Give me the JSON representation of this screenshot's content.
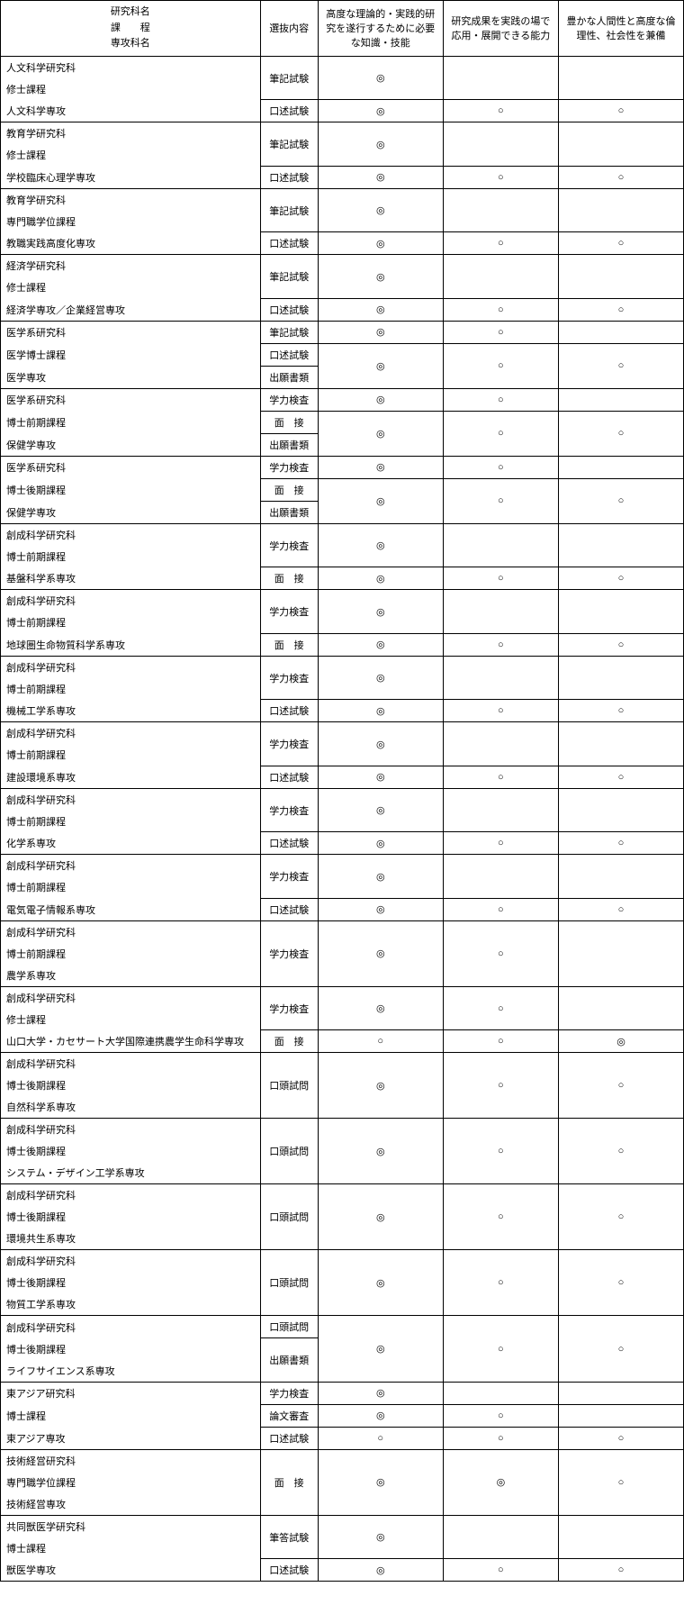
{
  "symbols": {
    "dcircle": "◎",
    "circle": "○"
  },
  "colors": {
    "border": "#000000",
    "text": "#000000",
    "bg": "#ffffff"
  },
  "typography": {
    "font_family": "MS Gothic",
    "font_size_pt": 8
  },
  "header": {
    "col1_lines": [
      "研究科名",
      "課　　程",
      "専攻科名"
    ],
    "col2": "選抜内容",
    "col3": "高度な理論的・実践的研究を遂行するために必要な知識・技能",
    "col4": "研究成果を実践の場で応用・展開できる能力",
    "col5": "豊かな人間性と高度な倫理性、社会性を兼備"
  },
  "groups": [
    {
      "program": [
        "人文科学研究科",
        "修士課程",
        "人文科学専攻"
      ],
      "rows": [
        {
          "sel": "筆記試験",
          "c3": "◎",
          "c4": "",
          "c5": "",
          "merge345": false,
          "span_rows": 2,
          "bigcell": true
        },
        {
          "sel": "口述試験",
          "c3": "◎",
          "c4": "○",
          "c5": "○"
        }
      ]
    },
    {
      "program": [
        "教育学研究科",
        "修士課程",
        "学校臨床心理学専攻"
      ],
      "rows": [
        {
          "sel": "筆記試験",
          "c3": "◎",
          "c4": "",
          "c5": "",
          "span_rows": 2,
          "bigcell": true
        },
        {
          "sel": "口述試験",
          "c3": "◎",
          "c4": "○",
          "c5": "○"
        }
      ]
    },
    {
      "program": [
        "教育学研究科",
        "専門職学位課程",
        "教職実践高度化専攻"
      ],
      "rows": [
        {
          "sel": "筆記試験",
          "c3": "◎",
          "c4": "",
          "c5": "",
          "span_rows": 2,
          "bigcell": true
        },
        {
          "sel": "口述試験",
          "c3": "◎",
          "c4": "○",
          "c5": "○"
        }
      ]
    },
    {
      "program": [
        "経済学研究科",
        "修士課程",
        "経済学専攻／企業経営専攻"
      ],
      "rows": [
        {
          "sel": "筆記試験",
          "c3": "◎",
          "c4": "",
          "c5": "",
          "span_rows": 2,
          "bigcell": true
        },
        {
          "sel": "口述試験",
          "c3": "◎",
          "c4": "○",
          "c5": "○"
        }
      ]
    },
    {
      "program": [
        "医学系研究科",
        "医学博士課程",
        "医学専攻"
      ],
      "rows": [
        {
          "sel": "筆記試験",
          "c3": "◎",
          "c4": "○",
          "c5": ""
        },
        {
          "sel": "口述試験",
          "c3": "◎",
          "c4": "○",
          "c5": "○",
          "merge_below_345": true
        },
        {
          "sel": "出願書類",
          "skip345": true
        }
      ]
    },
    {
      "program": [
        "医学系研究科",
        "博士前期課程",
        "保健学専攻"
      ],
      "rows": [
        {
          "sel": "学力検査",
          "c3": "◎",
          "c4": "○",
          "c5": ""
        },
        {
          "sel": "面　接",
          "c3": "◎",
          "c4": "○",
          "c5": "○",
          "merge_below_345": true
        },
        {
          "sel": "出願書類",
          "skip345": true
        }
      ]
    },
    {
      "program": [
        "医学系研究科",
        "博士後期課程",
        "保健学専攻"
      ],
      "rows": [
        {
          "sel": "学力検査",
          "c3": "◎",
          "c4": "○",
          "c5": ""
        },
        {
          "sel": "面　接",
          "c3": "◎",
          "c4": "○",
          "c5": "○",
          "merge_below_345": true
        },
        {
          "sel": "出願書類",
          "skip345": true
        }
      ]
    },
    {
      "program": [
        "創成科学研究科",
        "博士前期課程",
        "基盤科学系専攻"
      ],
      "rows": [
        {
          "sel": "学力検査",
          "c3": "◎",
          "c4": "",
          "c5": "",
          "span_rows": 2,
          "bigcell": true
        },
        {
          "sel": "面　接",
          "c3": "◎",
          "c4": "○",
          "c5": "○"
        }
      ]
    },
    {
      "program": [
        "創成科学研究科",
        "博士前期課程",
        "地球圏生命物質科学系専攻"
      ],
      "rows": [
        {
          "sel": "学力検査",
          "c3": "◎",
          "c4": "",
          "c5": "",
          "span_rows": 2,
          "bigcell": true
        },
        {
          "sel": "面　接",
          "c3": "◎",
          "c4": "○",
          "c5": "○"
        }
      ]
    },
    {
      "program": [
        "創成科学研究科",
        "博士前期課程",
        "機械工学系専攻"
      ],
      "rows": [
        {
          "sel": "学力検査",
          "c3": "◎",
          "c4": "",
          "c5": "",
          "span_rows": 2,
          "bigcell": true
        },
        {
          "sel": "口述試験",
          "c3": "◎",
          "c4": "○",
          "c5": "○"
        }
      ]
    },
    {
      "program": [
        "創成科学研究科",
        "博士前期課程",
        "建設環境系専攻"
      ],
      "rows": [
        {
          "sel": "学力検査",
          "c3": "◎",
          "c4": "",
          "c5": "",
          "span_rows": 2,
          "bigcell": true
        },
        {
          "sel": "口述試験",
          "c3": "◎",
          "c4": "○",
          "c5": "○"
        }
      ]
    },
    {
      "program": [
        "創成科学研究科",
        "博士前期課程",
        "化学系専攻"
      ],
      "rows": [
        {
          "sel": "学力検査",
          "c3": "◎",
          "c4": "",
          "c5": "",
          "span_rows": 2,
          "bigcell": true
        },
        {
          "sel": "口述試験",
          "c3": "◎",
          "c4": "○",
          "c5": "○"
        }
      ]
    },
    {
      "program": [
        "創成科学研究科",
        "博士前期課程",
        "電気電子情報系専攻"
      ],
      "rows": [
        {
          "sel": "学力検査",
          "c3": "◎",
          "c4": "",
          "c5": "",
          "span_rows": 2,
          "bigcell": true
        },
        {
          "sel": "口述試験",
          "c3": "◎",
          "c4": "○",
          "c5": "○"
        }
      ]
    },
    {
      "program": [
        "創成科学研究科",
        "博士前期課程",
        "農学系専攻"
      ],
      "rows": [
        {
          "sel": "学力検査",
          "c3": "◎",
          "c4": "○",
          "c5": "",
          "span_rows": 3,
          "single_big": true
        }
      ]
    },
    {
      "program": [
        "創成科学研究科",
        "修士課程",
        "山口大学・カセサート大学国際連携農学生命科学専攻"
      ],
      "rows": [
        {
          "sel": "学力検査",
          "c3": "◎",
          "c4": "○",
          "c5": "",
          "span_rows": 2,
          "bigcell": true
        },
        {
          "sel": "面　接",
          "c3": "○",
          "c4": "○",
          "c5": "◎"
        }
      ]
    },
    {
      "program": [
        "創成科学研究科",
        "博士後期課程",
        "自然科学系専攻"
      ],
      "rows": [
        {
          "sel": "口頭試問",
          "c3": "◎",
          "c4": "○",
          "c5": "○",
          "span_rows": 3,
          "single_big": true
        }
      ]
    },
    {
      "program": [
        "創成科学研究科",
        "博士後期課程",
        "システム・デザイン工学系専攻"
      ],
      "rows": [
        {
          "sel": "口頭試問",
          "c3": "◎",
          "c4": "○",
          "c5": "○",
          "span_rows": 3,
          "single_big": true
        }
      ]
    },
    {
      "program": [
        "創成科学研究科",
        "博士後期課程",
        "環境共生系専攻"
      ],
      "rows": [
        {
          "sel": "口頭試問",
          "c3": "◎",
          "c4": "○",
          "c5": "○",
          "span_rows": 3,
          "single_big": true
        }
      ]
    },
    {
      "program": [
        "創成科学研究科",
        "博士後期課程",
        "物質工学系専攻"
      ],
      "rows": [
        {
          "sel": "口頭試問",
          "c3": "◎",
          "c4": "○",
          "c5": "○",
          "span_rows": 3,
          "single_big": true
        }
      ]
    },
    {
      "program": [
        "創成科学研究科",
        "博士後期課程",
        "ライフサイエンス系専攻"
      ],
      "rows": [
        {
          "sel": "口頭試問",
          "c3": "◎",
          "c4": "○",
          "c5": "○",
          "span_rows": 2,
          "bigcell_two_sel": true,
          "sel2": "出願書類",
          "bigcell": true
        },
        {
          "sel": "SKIP"
        }
      ],
      "two_sel": [
        "口頭試問",
        "出願書類"
      ]
    },
    {
      "program": [
        "東アジア研究科",
        "博士課程",
        "東アジア専攻"
      ],
      "rows": [
        {
          "sel": "学力検査",
          "c3": "◎",
          "c4": "",
          "c5": ""
        },
        {
          "sel": "論文審査",
          "c3": "◎",
          "c4": "○",
          "c5": ""
        },
        {
          "sel": "口述試験",
          "c3": "○",
          "c4": "○",
          "c5": "○"
        }
      ]
    },
    {
      "program": [
        "技術経営研究科",
        "専門職学位課程",
        "技術経営専攻"
      ],
      "rows": [
        {
          "sel": "面　接",
          "c3": "◎",
          "c4": "◎",
          "c5": "○",
          "span_rows": 3,
          "single_big": true
        }
      ]
    },
    {
      "program": [
        "共同獣医学研究科",
        "博士課程",
        "獣医学専攻"
      ],
      "rows": [
        {
          "sel": "筆答試験",
          "c3": "◎",
          "c4": "",
          "c5": "",
          "span_rows": 2,
          "bigcell": true
        },
        {
          "sel": "口述試験",
          "c3": "◎",
          "c4": "○",
          "c5": "○"
        }
      ]
    }
  ]
}
